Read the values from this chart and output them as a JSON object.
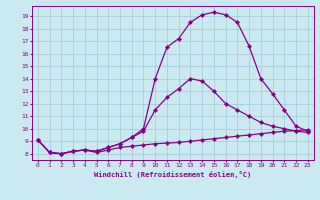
{
  "xlabel": "Windchill (Refroidissement éolien,°C)",
  "bg_color": "#cbe9f0",
  "grid_color": "#a0c8d8",
  "line_color": "#880088",
  "marker": "D",
  "markersize": 2.0,
  "linewidth": 0.9,
  "xlim": [
    -0.5,
    23.5
  ],
  "ylim": [
    7.5,
    19.8
  ],
  "xticks": [
    0,
    1,
    2,
    3,
    4,
    5,
    6,
    7,
    8,
    9,
    10,
    11,
    12,
    13,
    14,
    15,
    16,
    17,
    18,
    19,
    20,
    21,
    22,
    23
  ],
  "yticks": [
    8,
    9,
    10,
    11,
    12,
    13,
    14,
    15,
    16,
    17,
    18,
    19
  ],
  "line1_x": [
    0,
    1,
    2,
    3,
    4,
    5,
    6,
    7,
    8,
    9,
    10,
    11,
    12,
    13,
    14,
    15,
    16,
    17,
    18,
    19,
    20,
    21,
    22,
    23
  ],
  "line1_y": [
    9.1,
    8.1,
    8.0,
    8.2,
    8.3,
    8.1,
    8.3,
    8.5,
    8.6,
    8.7,
    8.8,
    8.85,
    8.9,
    9.0,
    9.1,
    9.2,
    9.3,
    9.4,
    9.5,
    9.6,
    9.7,
    9.8,
    9.85,
    9.9
  ],
  "line2_x": [
    0,
    1,
    2,
    3,
    4,
    5,
    6,
    7,
    8,
    9,
    10,
    11,
    12,
    13,
    14,
    15,
    16,
    17,
    18,
    19,
    20,
    21,
    22,
    23
  ],
  "line2_y": [
    9.1,
    8.1,
    8.0,
    8.2,
    8.3,
    8.2,
    8.5,
    8.8,
    9.3,
    9.8,
    11.5,
    12.5,
    13.2,
    14.0,
    13.8,
    13.0,
    12.0,
    11.5,
    11.0,
    10.5,
    10.2,
    10.0,
    9.8,
    9.7
  ],
  "line3_x": [
    0,
    1,
    2,
    3,
    4,
    5,
    6,
    7,
    8,
    9,
    10,
    11,
    12,
    13,
    14,
    15,
    16,
    17,
    18,
    19,
    20,
    21,
    22,
    23
  ],
  "line3_y": [
    9.1,
    8.1,
    8.0,
    8.2,
    8.3,
    8.2,
    8.5,
    8.8,
    9.3,
    10.0,
    14.0,
    16.5,
    17.2,
    18.5,
    19.1,
    19.3,
    19.1,
    18.5,
    16.6,
    14.0,
    12.8,
    11.5,
    10.2,
    9.8
  ]
}
